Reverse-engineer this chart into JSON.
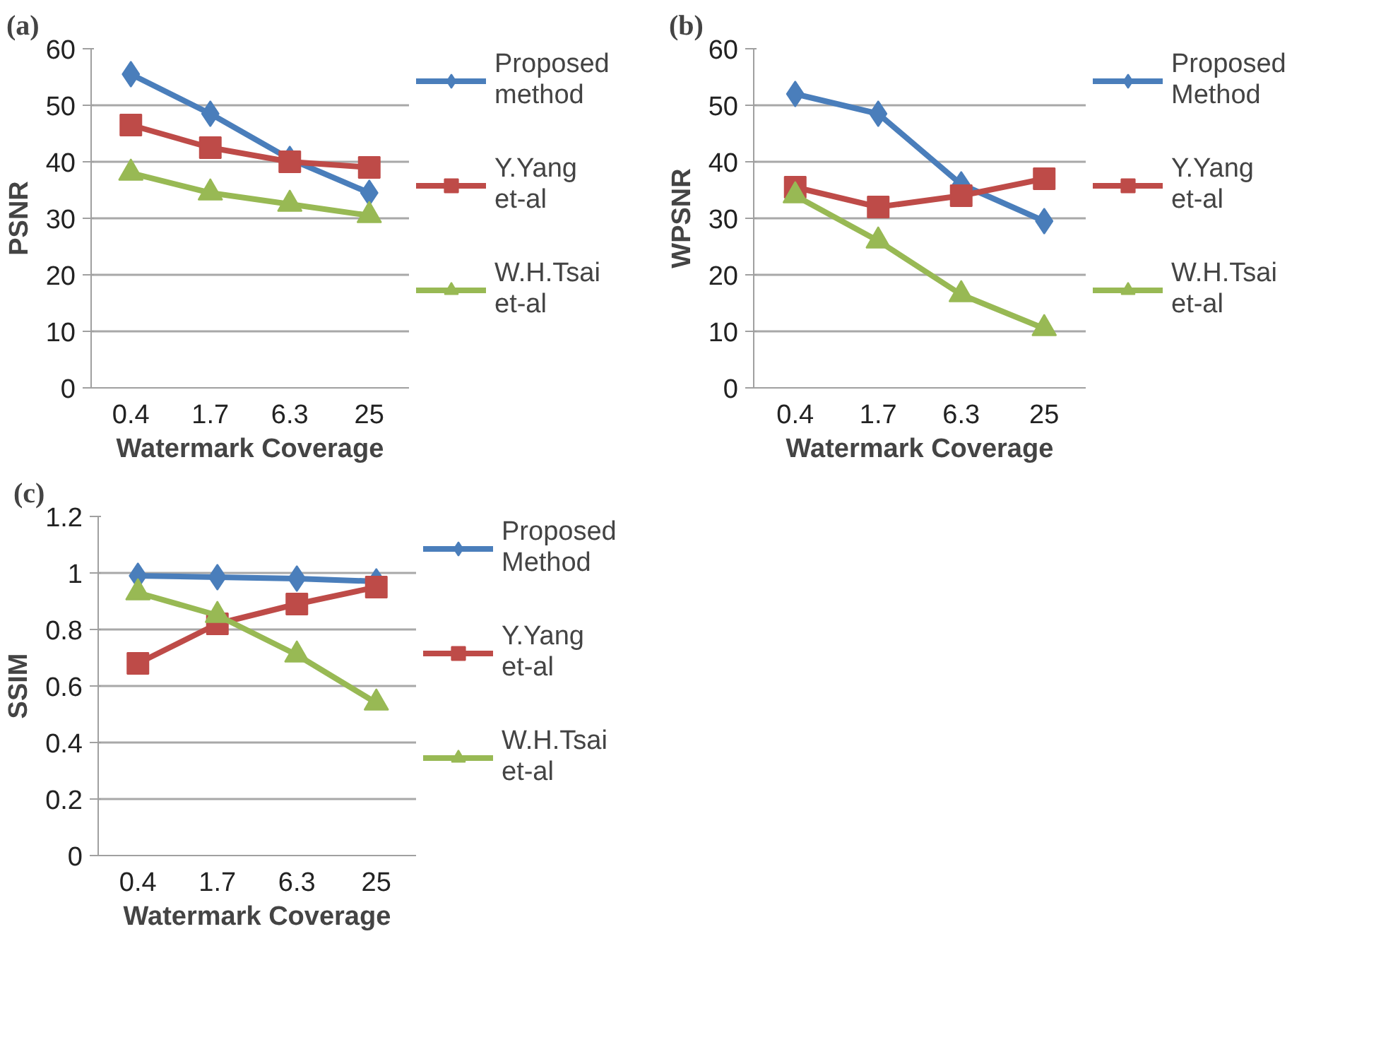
{
  "chart_data": [
    {
      "type": "line",
      "title": "(a)",
      "xlabel": "Watermark Coverage",
      "ylabel": "PSNR",
      "categories": [
        "0.4",
        "1.7",
        "6.3",
        "25"
      ],
      "ylim": [
        0,
        60
      ],
      "yticks": [
        0,
        10,
        20,
        30,
        40,
        50,
        60
      ],
      "grid": "y",
      "legend": "right",
      "series": [
        {
          "name": "Proposed method",
          "color": "#4a7ebb",
          "marker": "diamond",
          "values": [
            55.5,
            48.5,
            40.5,
            34.5
          ]
        },
        {
          "name": "Y.Yang et-al",
          "color": "#be4b48",
          "marker": "square",
          "values": [
            46.5,
            42.5,
            40,
            39
          ]
        },
        {
          "name": "W.H.Tsai et-al",
          "color": "#98b954",
          "marker": "triangle",
          "values": [
            38,
            34.5,
            32.5,
            30.5
          ]
        }
      ]
    },
    {
      "type": "line",
      "title": "(b)",
      "xlabel": "Watermark Coverage",
      "ylabel": "WPSNR",
      "categories": [
        "0.4",
        "1.7",
        "6.3",
        "25"
      ],
      "ylim": [
        0,
        60
      ],
      "yticks": [
        0,
        10,
        20,
        30,
        40,
        50,
        60
      ],
      "grid": "y",
      "legend": "right",
      "series": [
        {
          "name": "Proposed Method",
          "color": "#4a7ebb",
          "marker": "diamond",
          "values": [
            52,
            48.5,
            36,
            29.5
          ]
        },
        {
          "name": "Y.Yang et-al",
          "color": "#be4b48",
          "marker": "square",
          "values": [
            35.5,
            32,
            34,
            37
          ]
        },
        {
          "name": "W.H.Tsai et-al",
          "color": "#98b954",
          "marker": "triangle",
          "values": [
            34,
            26,
            16.5,
            10.5
          ]
        }
      ]
    },
    {
      "type": "line",
      "title": "(c)",
      "xlabel": "Watermark Coverage",
      "ylabel": "SSIM",
      "categories": [
        "0.4",
        "1.7",
        "6.3",
        "25"
      ],
      "ylim": [
        0,
        1.2
      ],
      "yticks": [
        0,
        0.2,
        0.4,
        0.6,
        0.8,
        1,
        1.2
      ],
      "grid": "y",
      "legend": "right",
      "series": [
        {
          "name": "Proposed Method",
          "color": "#4a7ebb",
          "marker": "diamond",
          "values": [
            0.99,
            0.985,
            0.98,
            0.97
          ]
        },
        {
          "name": "Y.Yang et-al",
          "color": "#be4b48",
          "marker": "square",
          "values": [
            0.68,
            0.82,
            0.89,
            0.95
          ]
        },
        {
          "name": "W.H.Tsai et-al",
          "color": "#98b954",
          "marker": "triangle",
          "values": [
            0.93,
            0.85,
            0.71,
            0.54
          ]
        }
      ]
    }
  ]
}
